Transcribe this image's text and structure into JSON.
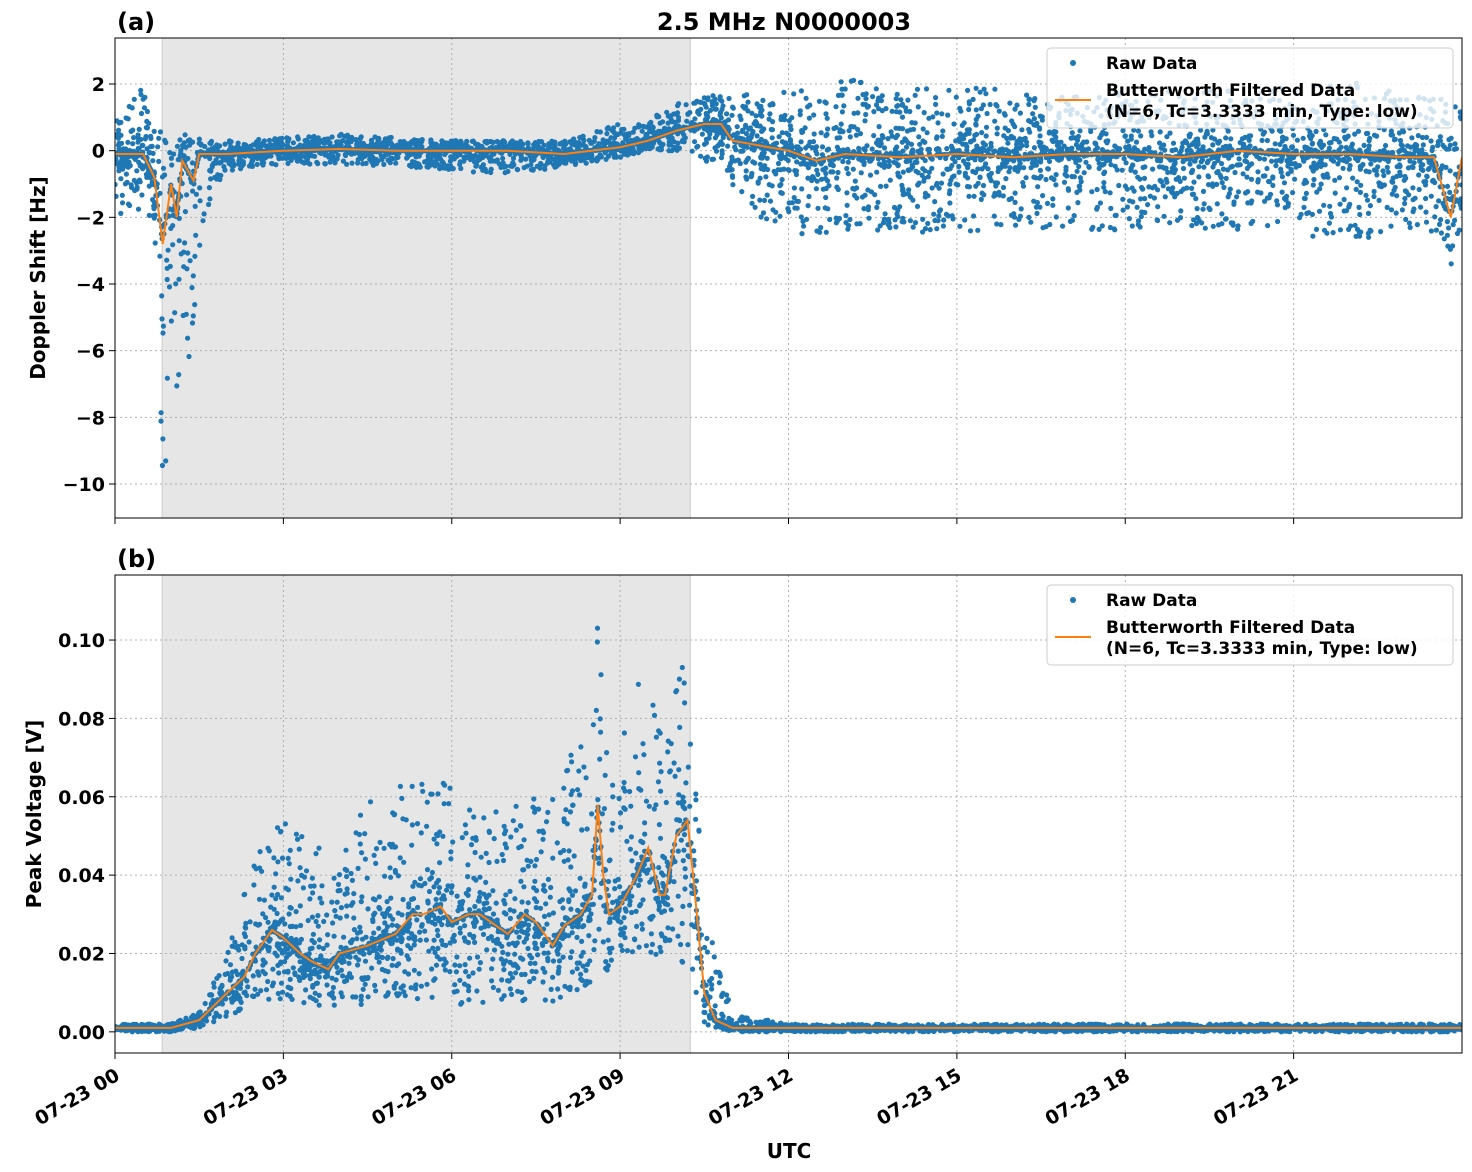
{
  "chart_data": [
    {
      "type": "scatter",
      "panel_label": "(a)",
      "title": "2.5 MHz N0000003",
      "xlabel": "",
      "ylabel": "Doppler Shift [Hz]",
      "xlim_hours": [
        0,
        24
      ],
      "ylim": [
        -11.02,
        3.38
      ],
      "yticks": [
        2,
        0,
        -2,
        -4,
        -6,
        -8,
        -10
      ],
      "ytick_labels": [
        "2",
        "0",
        "−2",
        "−4",
        "−6",
        "−8",
        "−10"
      ],
      "grid": true,
      "legend": "top-right",
      "shaded_region_hours": [
        0.84,
        10.25
      ],
      "colors": {
        "raw": "#1f77b4",
        "filtered": "#ff7f0e",
        "shade": "#e6e6e6"
      },
      "series": [
        {
          "name": "Raw Data",
          "kind": "points",
          "bands": {
            "t": [
              0,
              0.5,
              0.7,
              0.85,
              1.0,
              1.2,
              1.4,
              1.6,
              2,
              3,
              4,
              5,
              6,
              7,
              8,
              9,
              9.5,
              10,
              10.5,
              11,
              11.5,
              12,
              13,
              14,
              15,
              16,
              17,
              18,
              19,
              20,
              21,
              22,
              23,
              23.6,
              23.8,
              24
            ],
            "lo": [
              -2,
              -1.8,
              -2.5,
              -10.3,
              -8,
              -9.3,
              -5,
              -2,
              -0.6,
              -0.4,
              -0.4,
              -0.5,
              -0.6,
              -0.7,
              -0.5,
              -0.2,
              0,
              0,
              -0.3,
              -1,
              -2,
              -2.5,
              -2.5,
              -2.4,
              -2.5,
              -2.3,
              -2.4,
              -2.5,
              -2.3,
              -2.4,
              -2.5,
              -2.7,
              -2.5,
              -2.5,
              -3.6,
              -2
            ],
            "hi": [
              1.2,
              1.9,
              0.8,
              0.5,
              0.7,
              0.6,
              0.4,
              0.3,
              0.3,
              0.4,
              0.5,
              0.4,
              0.3,
              0.3,
              0.3,
              0.8,
              1,
              1.4,
              1.6,
              2,
              1.6,
              1.8,
              2.2,
              1.8,
              2,
              1.8,
              1.6,
              1.8,
              1.8,
              1.8,
              1.9,
              2.1,
              1.7,
              1.7,
              1.5,
              1.8
            ]
          }
        },
        {
          "name": "Butterworth Filtered Data\n(N=6, Tc=3.3333 min, Type: low)",
          "kind": "line",
          "x": [
            0,
            0.5,
            0.7,
            0.85,
            1.0,
            1.1,
            1.2,
            1.4,
            1.5,
            2,
            3,
            4,
            5,
            6,
            7,
            8,
            9,
            9.5,
            10,
            10.5,
            10.8,
            11,
            12,
            12.5,
            13,
            14,
            15,
            16,
            17,
            18,
            19,
            20,
            21,
            22,
            23,
            23.5,
            23.8,
            24
          ],
          "y": [
            -0.1,
            -0.1,
            -0.8,
            -2.8,
            -1,
            -2,
            -0.3,
            -0.9,
            -0.1,
            -0.1,
            0,
            0.05,
            0,
            0,
            0,
            -0.1,
            0.1,
            0.3,
            0.6,
            0.8,
            0.8,
            0.3,
            0,
            -0.3,
            -0.1,
            -0.2,
            -0.1,
            -0.2,
            -0.1,
            -0.1,
            -0.2,
            0,
            -0.1,
            -0.1,
            -0.2,
            -0.2,
            -2,
            -0.2
          ]
        }
      ],
      "legend_entries": [
        "Raw Data",
        "Butterworth Filtered Data",
        "(N=6, Tc=3.3333 min, Type: low)"
      ]
    },
    {
      "type": "scatter",
      "panel_label": "(b)",
      "xlabel": "UTC",
      "ylabel": "Peak Voltage [V]",
      "xlim_hours": [
        0,
        24
      ],
      "ylim": [
        -0.0054,
        0.1166
      ],
      "yticks": [
        0,
        0.02,
        0.04,
        0.06,
        0.08,
        0.1
      ],
      "ytick_labels": [
        "0.00",
        "0.02",
        "0.04",
        "0.06",
        "0.08",
        "0.10"
      ],
      "xticks_hours": [
        0,
        3,
        6,
        9,
        12,
        15,
        18,
        21
      ],
      "xtick_labels": [
        "07-23 00",
        "07-23 03",
        "07-23 06",
        "07-23 09",
        "07-23 12",
        "07-23 15",
        "07-23 18",
        "07-23 21"
      ],
      "grid": true,
      "legend": "top-right",
      "shaded_region_hours": [
        0.84,
        10.25
      ],
      "series": [
        {
          "name": "Raw Data",
          "kind": "points",
          "bands": {
            "t": [
              0,
              1,
              1.5,
              2,
              2.5,
              3,
              3.5,
              4,
              4.5,
              5,
              5.5,
              6,
              6.5,
              7,
              7.5,
              8,
              8.5,
              8.6,
              8.8,
              9,
              9.5,
              9.8,
              10,
              10.3,
              10.5,
              11,
              12,
              24
            ],
            "lo": [
              0,
              0,
              0.001,
              0.004,
              0.007,
              0.008,
              0.006,
              0.007,
              0.007,
              0.008,
              0.008,
              0.007,
              0.007,
              0.008,
              0.007,
              0.008,
              0.012,
              0.015,
              0.015,
              0.018,
              0.02,
              0.018,
              0.02,
              0.01,
              0.002,
              0,
              0,
              0
            ],
            "hi": [
              0.002,
              0.002,
              0.005,
              0.02,
              0.045,
              0.054,
              0.05,
              0.048,
              0.06,
              0.062,
              0.066,
              0.063,
              0.06,
              0.058,
              0.06,
              0.065,
              0.09,
              0.11,
              0.07,
              0.085,
              0.092,
              0.07,
              0.099,
              0.09,
              0.03,
              0.005,
              0.002,
              0.002
            ]
          }
        },
        {
          "name": "Butterworth Filtered Data\n(N=6, Tc=3.3333 min, Type: low)",
          "kind": "line",
          "x": [
            0,
            1,
            1.5,
            2,
            2.3,
            2.5,
            2.8,
            3,
            3.3,
            3.5,
            3.8,
            4,
            4.5,
            5,
            5.3,
            5.5,
            5.8,
            6,
            6.3,
            6.5,
            6.8,
            7,
            7.3,
            7.5,
            7.8,
            8,
            8.3,
            8.5,
            8.6,
            8.7,
            8.8,
            9,
            9.3,
            9.5,
            9.7,
            9.8,
            10,
            10.2,
            10.3,
            10.5,
            10.7,
            11,
            12,
            24
          ],
          "y": [
            0.001,
            0.001,
            0.003,
            0.01,
            0.014,
            0.02,
            0.026,
            0.024,
            0.02,
            0.018,
            0.016,
            0.02,
            0.022,
            0.025,
            0.03,
            0.03,
            0.032,
            0.028,
            0.03,
            0.03,
            0.027,
            0.025,
            0.03,
            0.028,
            0.022,
            0.027,
            0.03,
            0.035,
            0.058,
            0.04,
            0.03,
            0.032,
            0.04,
            0.047,
            0.035,
            0.035,
            0.05,
            0.054,
            0.04,
            0.01,
            0.003,
            0.001,
            0.001,
            0.001
          ]
        }
      ],
      "legend_entries": [
        "Raw Data",
        "Butterworth Filtered Data",
        "(N=6, Tc=3.3333 min, Type: low)"
      ]
    }
  ]
}
